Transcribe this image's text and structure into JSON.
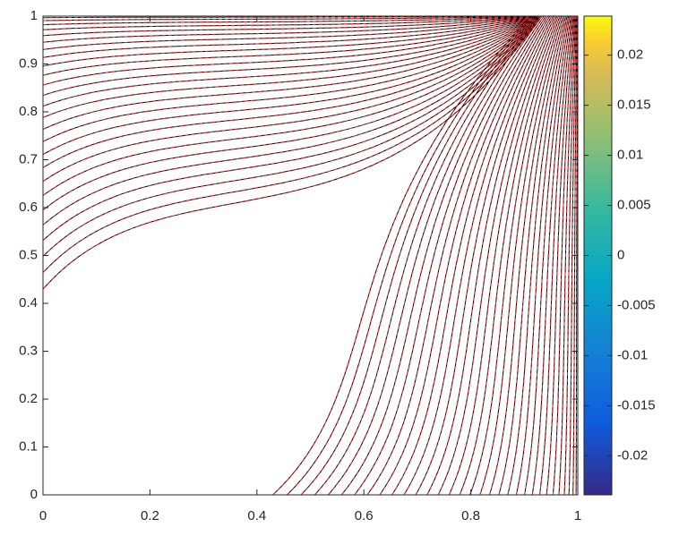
{
  "chart_data": {
    "type": "contour",
    "xlim": [
      0,
      1
    ],
    "ylim": [
      0,
      1
    ],
    "xticks": [
      0,
      0.2,
      0.4,
      0.6,
      0.8,
      1
    ],
    "yticks": [
      0,
      0.1,
      0.2,
      0.3,
      0.4,
      0.5,
      0.6,
      0.7,
      0.8,
      0.9,
      1
    ],
    "colorbar": {
      "clim": [
        -0.0239,
        0.0239
      ],
      "ticks": [
        -0.02,
        -0.015,
        -0.01,
        -0.005,
        0,
        0.005,
        0.01,
        0.015,
        0.02
      ]
    }
  }
}
